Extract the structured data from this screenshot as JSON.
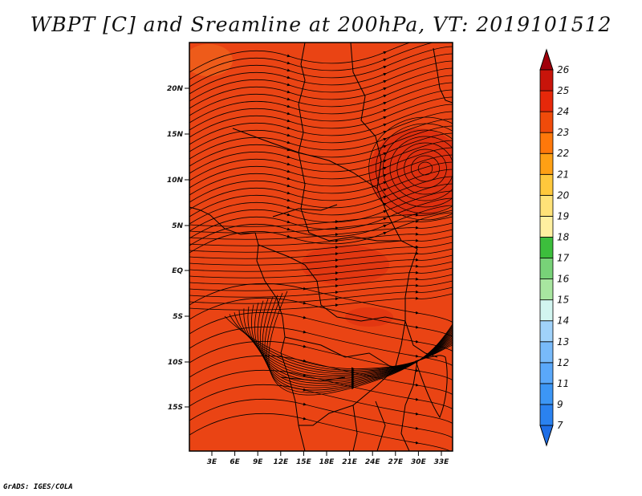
{
  "title": "WBPT [C] and Sreamline at 200hPa, VT: 2019101512",
  "credit": "GrADS: IGES/COLA",
  "map": {
    "y_ticks": [
      "20N",
      "15N",
      "10N",
      "5N",
      "EQ",
      "5S",
      "10S",
      "15S"
    ],
    "x_ticks": [
      "3E",
      "6E",
      "9E",
      "12E",
      "15E",
      "18E",
      "21E",
      "24E",
      "27E",
      "30E",
      "33E"
    ],
    "background_color": "#ea4414",
    "warm_core_color": "#d4200c"
  },
  "colorbar": {
    "levels": [
      "7",
      "9",
      "11",
      "12",
      "13",
      "14",
      "15",
      "16",
      "17",
      "18",
      "19",
      "20",
      "21",
      "22",
      "23",
      "24",
      "25",
      "26"
    ],
    "colors": [
      "#1e6ee6",
      "#2a82f0",
      "#3c96f5",
      "#5aa8fa",
      "#78bafa",
      "#a0d2fa",
      "#d2f5f0",
      "#a8e6a0",
      "#78d278",
      "#3cbe3c",
      "#fff0a0",
      "#ffe278",
      "#ffc83c",
      "#ffa014",
      "#ff780a",
      "#f04b0a",
      "#e6280a",
      "#c8140a",
      "#a0000a"
    ]
  }
}
